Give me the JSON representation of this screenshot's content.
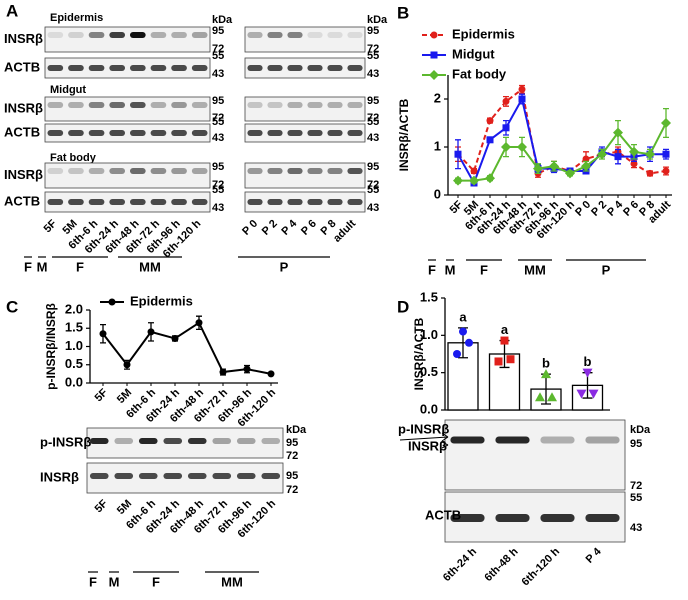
{
  "panel_a": {
    "letter": "A",
    "kda": "kDa",
    "tissues": [
      "Epidermis",
      "Midgut",
      "Fat body"
    ],
    "row_labels": [
      "INSRβ",
      "ACTB"
    ],
    "insr_markers": [
      "95",
      "72"
    ],
    "actb_markers": [
      "55",
      "43"
    ],
    "lanes_left": [
      "5F",
      "5M",
      "6th-6 h",
      "6th-24 h",
      "6th-48 h",
      "6th-72 h",
      "6th-96 h",
      "6th-120 h"
    ],
    "lanes_right": [
      "P 0",
      "P 2",
      "P 4",
      "P 6",
      "P 8",
      "adult"
    ],
    "groups": [
      "F",
      "M",
      "F",
      "MM",
      "P"
    ]
  },
  "panel_c_blot": {
    "row_labels": [
      "p-INSRβ",
      "INSRβ"
    ],
    "kda": "kDa",
    "markers": [
      "95",
      "72"
    ]
  },
  "panel_d_blot": {
    "row_labels": [
      "p-INSRβ",
      "INSRβ",
      "ACTB"
    ],
    "kda": "kDa",
    "markers": [
      "95",
      "72",
      "55",
      "43"
    ]
  },
  "chart_data": [
    {
      "type": "line",
      "letter": "B",
      "y_label": "INSRβ/ACTB",
      "categories": [
        "5F",
        "5M",
        "6th-6 h",
        "6th-24 h",
        "6th-48 h",
        "6th-72 h",
        "6th-96 h",
        "6th-120 h",
        "P 0",
        "P 2",
        "P 4",
        "P 6",
        "P 8",
        "adult"
      ],
      "ylim": [
        0,
        2.5
      ],
      "yticks": [
        0,
        1,
        2
      ],
      "groups": [
        "F",
        "M",
        "F",
        "MM",
        "P"
      ],
      "series": [
        {
          "name": "Epidermis",
          "color": "#e0201b",
          "dashed": true,
          "marker": "circle",
          "values": [
            0.85,
            0.5,
            1.55,
            1.95,
            2.2,
            0.45,
            0.6,
            0.5,
            0.75,
            0.85,
            0.9,
            0.65,
            0.45,
            0.5
          ],
          "errors": [
            0.15,
            0.05,
            0.05,
            0.1,
            0.08,
            0.08,
            0.1,
            0.05,
            0.15,
            0.05,
            0.1,
            0.08,
            0.05,
            0.08
          ]
        },
        {
          "name": "Midgut",
          "color": "#1a1aee",
          "marker": "square",
          "values": [
            0.85,
            0.25,
            1.15,
            1.4,
            2.0,
            0.55,
            0.55,
            0.5,
            0.5,
            0.9,
            0.8,
            0.8,
            0.85,
            0.85
          ],
          "errors": [
            0.3,
            0.05,
            0.05,
            0.15,
            0.1,
            0.08,
            0.08,
            0.05,
            0.05,
            0.1,
            0.15,
            0.1,
            0.15,
            0.1
          ]
        },
        {
          "name": "Fat body",
          "color": "#5cb82e",
          "marker": "diamond",
          "values": [
            0.3,
            0.3,
            0.35,
            1.0,
            1.0,
            0.55,
            0.6,
            0.45,
            0.6,
            0.85,
            1.3,
            0.9,
            0.85,
            1.5
          ],
          "errors": [
            0.05,
            0.05,
            0.05,
            0.2,
            0.2,
            0.1,
            0.1,
            0.05,
            0.1,
            0.1,
            0.25,
            0.15,
            0.1,
            0.3
          ]
        }
      ]
    },
    {
      "type": "line",
      "letter": "C",
      "y_label": "p-INSRβ/INSRβ",
      "categories": [
        "5F",
        "5M",
        "6th-6 h",
        "6th-24 h",
        "6th-48 h",
        "6th-72 h",
        "6th-96 h",
        "6th-120 h"
      ],
      "ylim": [
        0,
        2
      ],
      "yticks": [
        {
          "value": 0,
          "label": "0.0"
        },
        0.5,
        {
          "value": 1,
          "label": "1.0"
        },
        1.5,
        {
          "value": 2,
          "label": "2.0"
        }
      ],
      "groups": [
        "F",
        "M",
        "F",
        "MM"
      ],
      "series": [
        {
          "name": "Epidermis",
          "color": "#000000",
          "marker": "circle",
          "values": [
            1.35,
            0.5,
            1.4,
            1.22,
            1.65,
            0.3,
            0.38,
            0.25
          ],
          "errors": [
            0.25,
            0.12,
            0.25,
            0.07,
            0.18,
            0.08,
            0.1,
            0.02
          ]
        }
      ]
    },
    {
      "type": "bar",
      "letter": "D",
      "y_label": "INSRβ/ACTB",
      "categories": [
        "6th-24 h",
        "6th-48 h",
        "6th-120 h",
        "P 4"
      ],
      "values": [
        0.9,
        0.75,
        0.28,
        0.33
      ],
      "errors": [
        0.2,
        0.18,
        0.2,
        0.17
      ],
      "annotations": [
        "a",
        "a",
        "b",
        "b"
      ],
      "color": "#ffffff",
      "points": [
        [
          1.05,
          0.9,
          0.75
        ],
        [
          0.93,
          0.68,
          0.65
        ],
        [
          0.48,
          0.17,
          0.17
        ],
        [
          0.5,
          0.22,
          0.22
        ]
      ],
      "point_colors": [
        "#1a1aee",
        "#e0201b",
        "#5cb82e",
        "#8a2be2"
      ],
      "ylim": [
        0,
        1.5
      ],
      "yticks": [
        {
          "value": 0,
          "label": "0.0"
        },
        0.5,
        {
          "value": 1,
          "label": "1.0"
        },
        1.5
      ]
    }
  ]
}
